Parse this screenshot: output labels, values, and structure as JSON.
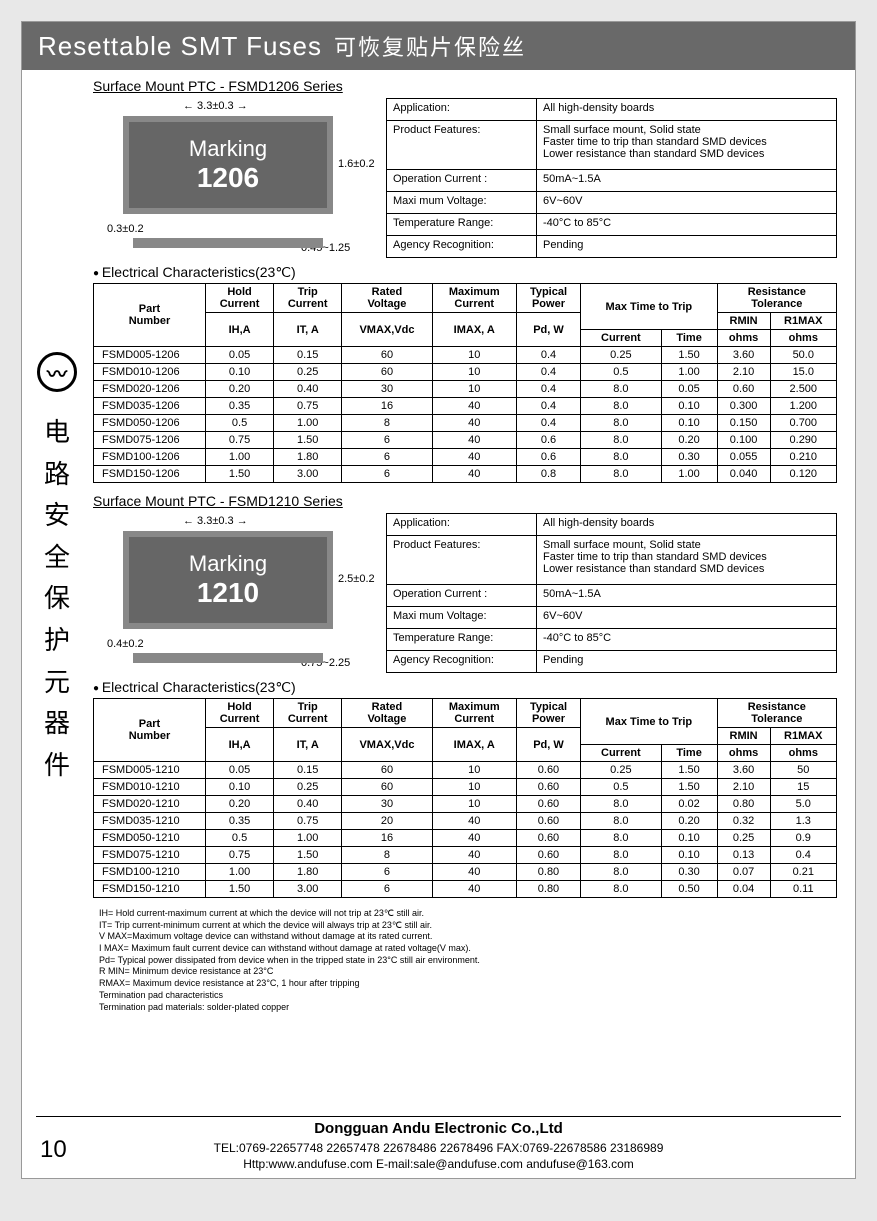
{
  "header": {
    "title_en": "Resettable SMT Fuses",
    "title_cn": "可恢复贴片保险丝"
  },
  "sidebar": {
    "vtext": "电路安全保护元器件"
  },
  "page_number": "10",
  "series": [
    {
      "title": "Surface Mount PTC  -  FSMD1206 Series",
      "chip_label1": "Marking",
      "chip_label2": "1206",
      "dims": {
        "width": "3.3±0.3",
        "height": "1.6±0.2",
        "pad_w": "0.3±0.2",
        "thick": "0.45~1.25"
      },
      "specs": [
        [
          "Application:",
          "All high-density boards"
        ],
        [
          "Product Features:",
          "Small surface mount, Solid state\nFaster time to trip than standard SMD devices\nLower resistance than standard SMD devices"
        ],
        [
          "Operation Current :",
          "50mA~1.5A"
        ],
        [
          "Maxi mum Voltage:",
          "6V~60V"
        ],
        [
          "Temperature Range:",
          "-40°C to 85°C"
        ],
        [
          "Agency  Recognition:",
          "Pending"
        ]
      ],
      "ec_title": "Electrical Characteristics(23℃)",
      "columns_top": [
        "Part\nNumber",
        "Hold\nCurrent",
        "Trip\nCurrent",
        "Rated\nVoltage",
        "Maximum\nCurrent",
        "Typical\nPower",
        "Max Time to Trip",
        "Resistance\nTolerance"
      ],
      "columns_sub": [
        "",
        "",
        "",
        "",
        "",
        "",
        "",
        "RMIN",
        "R1MAX"
      ],
      "units": [
        "",
        "IH,A",
        "IT, A",
        "VMAX,Vdc",
        "IMAX, A",
        "Pd, W",
        "Current",
        "Time",
        "ohms",
        "ohms"
      ],
      "rows": [
        [
          "FSMD005-1206",
          "0.05",
          "0.15",
          "60",
          "10",
          "0.4",
          "0.25",
          "1.50",
          "3.60",
          "50.0"
        ],
        [
          "FSMD010-1206",
          "0.10",
          "0.25",
          "60",
          "10",
          "0.4",
          "0.5",
          "1.00",
          "2.10",
          "15.0"
        ],
        [
          "FSMD020-1206",
          "0.20",
          "0.40",
          "30",
          "10",
          "0.4",
          "8.0",
          "0.05",
          "0.60",
          "2.500"
        ],
        [
          "FSMD035-1206",
          "0.35",
          "0.75",
          "16",
          "40",
          "0.4",
          "8.0",
          "0.10",
          "0.300",
          "1.200"
        ],
        [
          "FSMD050-1206",
          "0.5",
          "1.00",
          "8",
          "40",
          "0.4",
          "8.0",
          "0.10",
          "0.150",
          "0.700"
        ],
        [
          "FSMD075-1206",
          "0.75",
          "1.50",
          "6",
          "40",
          "0.6",
          "8.0",
          "0.20",
          "0.100",
          "0.290"
        ],
        [
          "FSMD100-1206",
          "1.00",
          "1.80",
          "6",
          "40",
          "0.6",
          "8.0",
          "0.30",
          "0.055",
          "0.210"
        ],
        [
          "FSMD150-1206",
          "1.50",
          "3.00",
          "6",
          "40",
          "0.8",
          "8.0",
          "1.00",
          "0.040",
          "0.120"
        ]
      ]
    },
    {
      "title": "Surface Mount PTC  -  FSMD1210 Series",
      "chip_label1": "Marking",
      "chip_label2": "1210",
      "dims": {
        "width": "3.3±0.3",
        "height": "2.5±0.2",
        "pad_w": "0.4±0.2",
        "thick": "0.75~2.25"
      },
      "specs": [
        [
          "Application:",
          "All high-density boards"
        ],
        [
          "Product Features:",
          "Small surface mount, Solid state\nFaster time to trip than standard SMD devices\nLower resistance than standard SMD devices"
        ],
        [
          "Operation Current :",
          "50mA~1.5A"
        ],
        [
          "Maxi mum Voltage:",
          "6V~60V"
        ],
        [
          "Temperature Range:",
          "-40°C to 85°C"
        ],
        [
          "Agency  Recognition:",
          "Pending"
        ]
      ],
      "ec_title": "Electrical Characteristics(23℃)",
      "rows": [
        [
          "FSMD005-1210",
          "0.05",
          "0.15",
          "60",
          "10",
          "0.60",
          "0.25",
          "1.50",
          "3.60",
          "50"
        ],
        [
          "FSMD010-1210",
          "0.10",
          "0.25",
          "60",
          "10",
          "0.60",
          "0.5",
          "1.50",
          "2.10",
          "15"
        ],
        [
          "FSMD020-1210",
          "0.20",
          "0.40",
          "30",
          "10",
          "0.60",
          "8.0",
          "0.02",
          "0.80",
          "5.0"
        ],
        [
          "FSMD035-1210",
          "0.35",
          "0.75",
          "20",
          "40",
          "0.60",
          "8.0",
          "0.20",
          "0.32",
          "1.3"
        ],
        [
          "FSMD050-1210",
          "0.5",
          "1.00",
          "16",
          "40",
          "0.60",
          "8.0",
          "0.10",
          "0.25",
          "0.9"
        ],
        [
          "FSMD075-1210",
          "0.75",
          "1.50",
          "8",
          "40",
          "0.60",
          "8.0",
          "0.10",
          "0.13",
          "0.4"
        ],
        [
          "FSMD100-1210",
          "1.00",
          "1.80",
          "6",
          "40",
          "0.80",
          "8.0",
          "0.30",
          "0.07",
          "0.21"
        ],
        [
          "FSMD150-1210",
          "1.50",
          "3.00",
          "6",
          "40",
          "0.80",
          "8.0",
          "0.50",
          "0.04",
          "0.11"
        ]
      ]
    }
  ],
  "notes": [
    "IH= Hold current-maximum current at which the device will not trip at 23℃ still air.",
    "IT= Trip current-minimum current at which the device will always trip at 23℃ still air.",
    "V MAX=Maximum voltage device can withstand without damage at its rated current.",
    "I MAX=  Maximum fault current device can withstand without damage at rated voltage(V max).",
    "Pd= Typical power dissipated from device when in the tripped state in 23°C still air environment.",
    "R MIN=  Minimum device resistance at 23°C",
    "RMAX=   Maximum device resistance at 23°C, 1 hour after tripping",
    "Termination pad characteristics",
    "Termination pad materials: solder-plated copper"
  ],
  "footer": {
    "company": "Dongguan Andu Electronic Co.,Ltd",
    "line2": "TEL:0769-22657748  22657478  22678486 22678496             FAX:0769-22678586  23186989",
    "line3": "Http:www.andufuse.com   E-mail:sale@andufuse.com   andufuse@163.com"
  }
}
